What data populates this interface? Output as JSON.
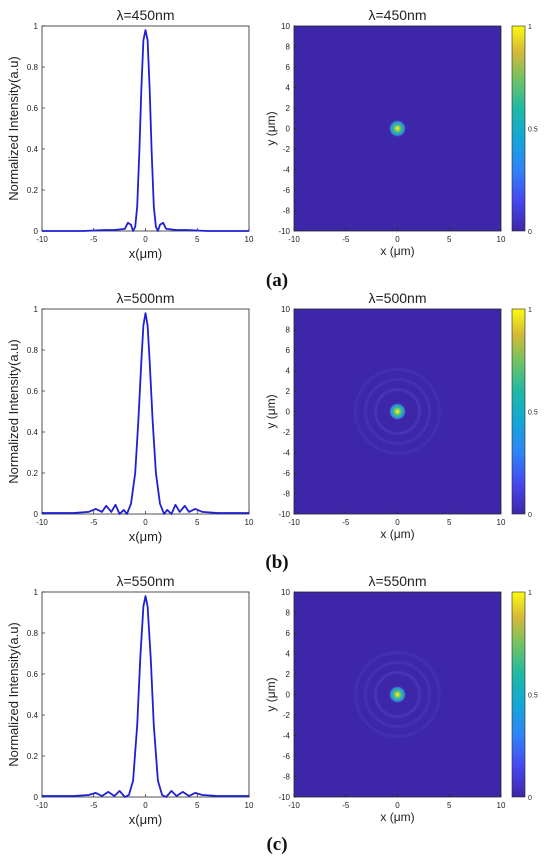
{
  "panels": [
    {
      "caption": "(a)",
      "profile": {
        "title": "λ=450nm",
        "xlabel": "x(μm)",
        "ylabel": "Normalized Intensity(a.u)"
      },
      "map": {
        "title": "λ=450nm",
        "xlabel": "x (μm)",
        "ylabel": "y (μm)"
      }
    },
    {
      "caption": "(b)",
      "profile": {
        "title": "λ=500nm",
        "xlabel": "x(μm)",
        "ylabel": "Normalized Intensity(a.u)"
      },
      "map": {
        "title": "λ=500nm",
        "xlabel": "x (μm)",
        "ylabel": "y (μm)"
      }
    },
    {
      "caption": "(c)",
      "profile": {
        "title": "λ=550nm",
        "xlabel": "x(μm)",
        "ylabel": "Normalized Intensity(a.u)"
      },
      "map": {
        "title": "λ=550nm",
        "xlabel": "x (μm)",
        "ylabel": "y (μm)"
      }
    }
  ],
  "colors": {
    "line": "#1f1fd6",
    "map_background": "#3e26a8",
    "axis": "#262626"
  },
  "chart_data": [
    {
      "type": "line",
      "title": "λ=450nm",
      "xlabel": "x(μm)",
      "ylabel": "Normalized Intensity(a.u)",
      "xlim": [
        -10,
        10
      ],
      "ylim": [
        0,
        1
      ],
      "xticks": [
        -10,
        -5,
        0,
        5,
        10
      ],
      "yticks": [
        0,
        0.2,
        0.4,
        0.6,
        0.8,
        1
      ],
      "series": [
        {
          "x": [
            -10,
            -6,
            -4,
            -3,
            -2,
            -1.7,
            -1.4,
            -1.2,
            -1.0,
            -0.8,
            -0.6,
            -0.4,
            -0.2,
            0,
            0.2,
            0.4,
            0.6,
            0.8,
            1.0,
            1.2,
            1.4,
            1.7,
            2,
            3,
            4,
            6,
            10
          ],
          "y": [
            0.0,
            0.0,
            0.005,
            0.005,
            0.01,
            0.04,
            0.03,
            0.0,
            0.02,
            0.12,
            0.38,
            0.7,
            0.93,
            0.98,
            0.93,
            0.7,
            0.38,
            0.12,
            0.02,
            0.0,
            0.03,
            0.04,
            0.01,
            0.005,
            0.005,
            0.0,
            0.0
          ]
        }
      ]
    },
    {
      "type": "heatmap",
      "title": "λ=450nm",
      "xlabel": "x (μm)",
      "ylabel": "y (μm)",
      "xlim": [
        -10,
        10
      ],
      "ylim": [
        -10,
        10
      ],
      "xticks": [
        -10,
        -5,
        0,
        5,
        10
      ],
      "yticks": [
        -10,
        -8,
        -6,
        -4,
        -2,
        0,
        2,
        4,
        6,
        8,
        10
      ],
      "colorbar": {
        "range": [
          0,
          1
        ],
        "ticks": [
          0,
          0.5,
          1
        ],
        "colormap": "parula"
      },
      "spot_center": [
        0,
        0
      ],
      "rings": false
    },
    {
      "type": "line",
      "title": "λ=500nm",
      "xlabel": "x(μm)",
      "ylabel": "Normalized Intensity(a.u)",
      "xlim": [
        -10,
        10
      ],
      "ylim": [
        0,
        1
      ],
      "xticks": [
        -10,
        -5,
        0,
        5,
        10
      ],
      "yticks": [
        0,
        0.2,
        0.4,
        0.6,
        0.8,
        1
      ],
      "series": [
        {
          "x": [
            -10,
            -7,
            -5.5,
            -4.8,
            -4.2,
            -3.8,
            -3.3,
            -2.9,
            -2.5,
            -2.1,
            -1.8,
            -1.4,
            -1.0,
            -0.7,
            -0.4,
            -0.2,
            0,
            0.2,
            0.4,
            0.7,
            1.0,
            1.4,
            1.8,
            2.1,
            2.5,
            2.9,
            3.3,
            3.8,
            4.2,
            4.8,
            5.5,
            7,
            10
          ],
          "y": [
            0.005,
            0.005,
            0.01,
            0.025,
            0.01,
            0.04,
            0.01,
            0.045,
            0.0,
            0.02,
            0.0,
            0.05,
            0.2,
            0.45,
            0.75,
            0.92,
            0.98,
            0.92,
            0.75,
            0.45,
            0.2,
            0.05,
            0.0,
            0.02,
            0.0,
            0.045,
            0.01,
            0.04,
            0.01,
            0.025,
            0.01,
            0.005,
            0.005
          ]
        }
      ]
    },
    {
      "type": "heatmap",
      "title": "λ=500nm",
      "xlabel": "x (μm)",
      "ylabel": "y (μm)",
      "xlim": [
        -10,
        10
      ],
      "ylim": [
        -10,
        10
      ],
      "xticks": [
        -10,
        -5,
        0,
        5,
        10
      ],
      "yticks": [
        -10,
        -8,
        -6,
        -4,
        -2,
        0,
        2,
        4,
        6,
        8,
        10
      ],
      "colorbar": {
        "range": [
          0,
          1
        ],
        "ticks": [
          0,
          0.5,
          1
        ],
        "colormap": "parula"
      },
      "spot_center": [
        0,
        0
      ],
      "rings": true
    },
    {
      "type": "line",
      "title": "λ=550nm",
      "xlabel": "x(μm)",
      "ylabel": "Normalized Intensity(a.u)",
      "xlim": [
        -10,
        10
      ],
      "ylim": [
        0,
        1
      ],
      "xticks": [
        -10,
        -5,
        0,
        5,
        10
      ],
      "yticks": [
        0,
        0.2,
        0.4,
        0.6,
        0.8,
        1
      ],
      "series": [
        {
          "x": [
            -10,
            -7,
            -5.5,
            -4.8,
            -4.2,
            -3.6,
            -3.0,
            -2.5,
            -2.0,
            -1.6,
            -1.2,
            -0.8,
            -0.5,
            -0.2,
            0,
            0.2,
            0.5,
            0.8,
            1.2,
            1.6,
            2.0,
            2.5,
            3.0,
            3.6,
            4.2,
            4.8,
            5.5,
            7,
            10
          ],
          "y": [
            0.005,
            0.005,
            0.01,
            0.02,
            0.005,
            0.025,
            0.005,
            0.03,
            0.0,
            0.01,
            0.08,
            0.35,
            0.68,
            0.93,
            0.98,
            0.93,
            0.68,
            0.35,
            0.08,
            0.01,
            0.0,
            0.03,
            0.005,
            0.025,
            0.005,
            0.02,
            0.01,
            0.005,
            0.005
          ]
        }
      ]
    },
    {
      "type": "heatmap",
      "title": "λ=550nm",
      "xlabel": "x (μm)",
      "ylabel": "y (μm)",
      "xlim": [
        -10,
        10
      ],
      "ylim": [
        -10,
        10
      ],
      "xticks": [
        -10,
        -5,
        0,
        5,
        10
      ],
      "yticks": [
        -10,
        -8,
        -6,
        -4,
        -2,
        0,
        2,
        4,
        6,
        8,
        10
      ],
      "colorbar": {
        "range": [
          0,
          1
        ],
        "ticks": [
          0,
          0.5,
          1
        ],
        "colormap": "parula"
      },
      "spot_center": [
        0,
        0
      ],
      "rings": true
    }
  ]
}
